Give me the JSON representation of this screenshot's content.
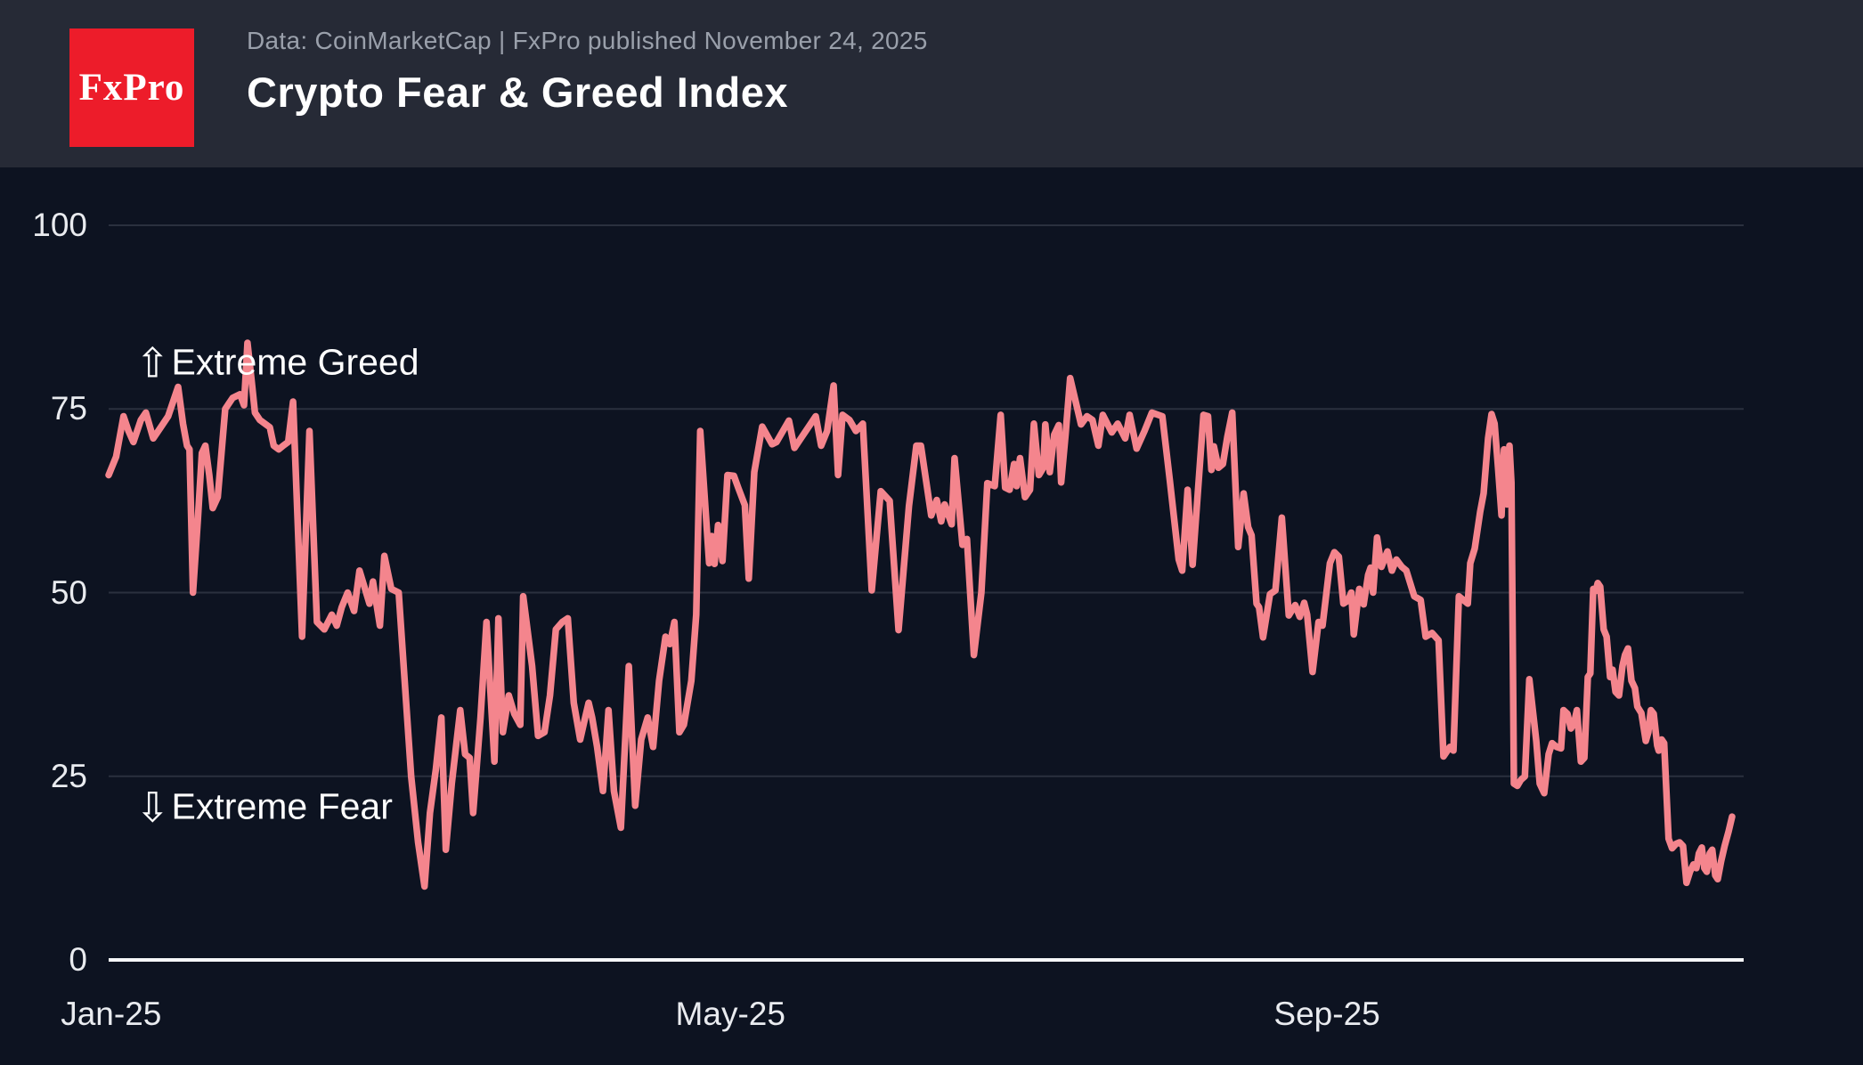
{
  "header": {
    "logo_text": "FxPro",
    "subtitle": "Data: CoinMarketCap | FxPro published November 24, 2025",
    "title": "Crypto Fear & Greed Index"
  },
  "annotations": {
    "greed": {
      "arrow": "⇧",
      "label": "Extreme Greed"
    },
    "fear": {
      "arrow": "⇩",
      "label": "Extreme Fear"
    }
  },
  "colors": {
    "page_background": "#0d1321",
    "header_background": "#262a36",
    "logo_red": "#ed1c2a",
    "line": "#f4858d",
    "gridline": "#2a303e",
    "zero_axis": "#f5f6f8",
    "tick_text": "#e9ebef",
    "subtitle_text": "#9aa0ab",
    "title_text": "#ffffff"
  },
  "chart_data": {
    "type": "line",
    "title": "Crypto Fear & Greed Index",
    "series_name": "Fear & Greed Index",
    "x_unit": "days since Jan 1 2025",
    "x_domain": [
      0,
      327.4
    ],
    "ylim": [
      0,
      100
    ],
    "grid": "horizontal-only",
    "legend": "none",
    "y_ticks": [
      {
        "v": 100,
        "label": "100"
      },
      {
        "v": 75,
        "label": "75"
      },
      {
        "v": 50,
        "label": "50"
      },
      {
        "v": 25,
        "label": "25"
      },
      {
        "v": 0,
        "label": "0"
      }
    ],
    "x_ticks": [
      {
        "d": 0.5,
        "label": "Jan-25"
      },
      {
        "d": 125.4,
        "label": "May-25"
      },
      {
        "d": 245.7,
        "label": "Sep-25"
      }
    ],
    "points": [
      [
        0,
        66
      ],
      [
        1.5,
        68.5
      ],
      [
        3,
        74
      ],
      [
        4,
        72
      ],
      [
        5,
        70.5
      ],
      [
        6.5,
        73.5
      ],
      [
        7.5,
        74.5
      ],
      [
        9,
        71
      ],
      [
        10.5,
        72.5
      ],
      [
        12,
        74
      ],
      [
        14,
        78
      ],
      [
        15,
        73
      ],
      [
        15.8,
        70
      ],
      [
        16.3,
        69.5
      ],
      [
        17,
        50
      ],
      [
        18,
        60
      ],
      [
        18.8,
        69
      ],
      [
        19.5,
        70
      ],
      [
        20.3,
        66
      ],
      [
        21,
        61.5
      ],
      [
        22,
        63
      ],
      [
        23.5,
        75
      ],
      [
        25,
        76.5
      ],
      [
        26.5,
        77
      ],
      [
        27.3,
        75.5
      ],
      [
        28,
        84
      ],
      [
        28.8,
        79
      ],
      [
        29.5,
        74.5
      ],
      [
        30.5,
        73.5
      ],
      [
        31.5,
        73
      ],
      [
        32.5,
        72.5
      ],
      [
        33.3,
        70
      ],
      [
        34.3,
        69.5
      ],
      [
        35.2,
        70
      ],
      [
        36.2,
        70.5
      ],
      [
        37.2,
        76
      ],
      [
        39,
        44
      ],
      [
        40.5,
        72
      ],
      [
        42,
        46
      ],
      [
        43.5,
        45
      ],
      [
        45,
        47
      ],
      [
        46,
        45.5
      ],
      [
        47,
        48
      ],
      [
        48.2,
        50
      ],
      [
        49.5,
        47.5
      ],
      [
        50.6,
        53
      ],
      [
        52.6,
        48.5
      ],
      [
        53.3,
        51.5
      ],
      [
        54.7,
        45.5
      ],
      [
        55.6,
        55
      ],
      [
        57,
        50.5
      ],
      [
        58.5,
        50
      ],
      [
        59.7,
        38
      ],
      [
        61,
        25
      ],
      [
        62.4,
        16
      ],
      [
        63.7,
        10
      ],
      [
        64.8,
        20
      ],
      [
        66,
        26
      ],
      [
        67.1,
        33
      ],
      [
        68,
        15
      ],
      [
        69.2,
        24
      ],
      [
        70.9,
        34
      ],
      [
        71.9,
        28
      ],
      [
        72.8,
        27.5
      ],
      [
        73.5,
        20
      ],
      [
        75,
        33
      ],
      [
        76.2,
        46
      ],
      [
        77.8,
        27
      ],
      [
        78.6,
        46.5
      ],
      [
        79.5,
        31
      ],
      [
        80.7,
        36
      ],
      [
        81.8,
        33.5
      ],
      [
        83,
        32
      ],
      [
        83.6,
        49.5
      ],
      [
        85.4,
        40
      ],
      [
        86.6,
        30.5
      ],
      [
        87.9,
        31
      ],
      [
        89,
        36
      ],
      [
        90.2,
        45
      ],
      [
        91.5,
        46
      ],
      [
        92.6,
        46.5
      ],
      [
        93.8,
        35
      ],
      [
        95.1,
        30
      ],
      [
        96.1,
        33
      ],
      [
        96.8,
        35
      ],
      [
        97.5,
        33
      ],
      [
        98.5,
        29
      ],
      [
        99.7,
        23
      ],
      [
        100.8,
        34
      ],
      [
        101.9,
        23
      ],
      [
        103.3,
        18
      ],
      [
        104.9,
        40
      ],
      [
        106.2,
        21
      ],
      [
        107.4,
        30
      ],
      [
        108.7,
        33
      ],
      [
        109.8,
        29
      ],
      [
        111,
        38
      ],
      [
        112.3,
        44
      ],
      [
        113.2,
        43
      ],
      [
        114.1,
        46
      ],
      [
        115.1,
        31
      ],
      [
        116,
        32
      ],
      [
        117.5,
        38
      ],
      [
        118.5,
        47
      ],
      [
        119.3,
        72
      ],
      [
        120.2,
        63
      ],
      [
        121.1,
        54
      ],
      [
        121.6,
        57.7
      ],
      [
        122.2,
        53.9
      ],
      [
        122.9,
        59.2
      ],
      [
        123.8,
        54.3
      ],
      [
        124.8,
        66
      ],
      [
        126.1,
        65.9
      ],
      [
        127,
        64.2
      ],
      [
        128.3,
        61.9
      ],
      [
        129.1,
        51.9
      ],
      [
        130.2,
        66.4
      ],
      [
        131.8,
        72.6
      ],
      [
        133.8,
        70.2
      ],
      [
        134.7,
        70.5
      ],
      [
        137.2,
        73.4
      ],
      [
        138.3,
        69.7
      ],
      [
        139.6,
        71
      ],
      [
        142.6,
        74
      ],
      [
        143.7,
        70
      ],
      [
        144.9,
        72
      ],
      [
        146.2,
        78.2
      ],
      [
        147.1,
        66
      ],
      [
        148,
        74.2
      ],
      [
        149.4,
        73.5
      ],
      [
        150.7,
        72
      ],
      [
        152.1,
        73
      ],
      [
        153.9,
        50.3
      ],
      [
        155.7,
        63.8
      ],
      [
        157.5,
        62.5
      ],
      [
        159.3,
        44.9
      ],
      [
        161.4,
        61.8
      ],
      [
        162.9,
        70
      ],
      [
        163.8,
        70
      ],
      [
        165.9,
        60.5
      ],
      [
        167,
        62.6
      ],
      [
        167.9,
        59.7
      ],
      [
        168.6,
        62
      ],
      [
        170,
        59.3
      ],
      [
        170.6,
        68.3
      ],
      [
        172.2,
        56.5
      ],
      [
        173.1,
        57.3
      ],
      [
        174.5,
        41.5
      ],
      [
        176,
        50
      ],
      [
        177.2,
        64.9
      ],
      [
        178.7,
        64.5
      ],
      [
        179.9,
        74.2
      ],
      [
        180.8,
        64.3
      ],
      [
        181.7,
        64
      ],
      [
        182.6,
        67.5
      ],
      [
        183.1,
        64.5
      ],
      [
        183.8,
        68.3
      ],
      [
        184.8,
        63
      ],
      [
        185.8,
        64
      ],
      [
        186.6,
        73
      ],
      [
        187.6,
        66
      ],
      [
        188.5,
        67
      ],
      [
        188.9,
        72.9
      ],
      [
        189.8,
        66.4
      ],
      [
        190.7,
        71.5
      ],
      [
        191.6,
        72.8
      ],
      [
        192.1,
        65
      ],
      [
        193,
        71.6
      ],
      [
        193.9,
        79.2
      ],
      [
        196.1,
        72.9
      ],
      [
        197.3,
        74
      ],
      [
        198.4,
        73.5
      ],
      [
        199.6,
        70
      ],
      [
        200.5,
        74.2
      ],
      [
        202.3,
        71.8
      ],
      [
        203.5,
        73
      ],
      [
        205,
        71
      ],
      [
        205.9,
        74.2
      ],
      [
        207.3,
        69.6
      ],
      [
        208.9,
        72
      ],
      [
        210.4,
        74.5
      ],
      [
        212.5,
        74
      ],
      [
        214,
        65.3
      ],
      [
        215.8,
        54.5
      ],
      [
        216.5,
        53
      ],
      [
        217.6,
        64
      ],
      [
        218.6,
        53.8
      ],
      [
        220.8,
        74.2
      ],
      [
        221.7,
        74
      ],
      [
        222.4,
        66.7
      ],
      [
        222.9,
        69.9
      ],
      [
        223.8,
        67
      ],
      [
        224.7,
        67.5
      ],
      [
        225.6,
        71.2
      ],
      [
        226.6,
        74.5
      ],
      [
        227.8,
        56.2
      ],
      [
        228.9,
        63.5
      ],
      [
        229.8,
        58.9
      ],
      [
        230.5,
        57.8
      ],
      [
        231.5,
        48.5
      ],
      [
        232,
        48
      ],
      [
        232.8,
        43.9
      ],
      [
        234.2,
        49.8
      ],
      [
        235.3,
        50.3
      ],
      [
        236.6,
        60.2
      ],
      [
        238,
        46.9
      ],
      [
        239.3,
        48.3
      ],
      [
        240.2,
        46.7
      ],
      [
        241.1,
        48.6
      ],
      [
        241.7,
        47
      ],
      [
        242.8,
        39.2
      ],
      [
        244,
        46
      ],
      [
        244.8,
        45.5
      ],
      [
        246.3,
        54
      ],
      [
        247.2,
        55.5
      ],
      [
        248.1,
        54.9
      ],
      [
        249,
        48.5
      ],
      [
        249.9,
        48.9
      ],
      [
        250.6,
        50
      ],
      [
        251.1,
        44.3
      ],
      [
        252.2,
        50.5
      ],
      [
        253.1,
        48.4
      ],
      [
        254,
        52.4
      ],
      [
        254.5,
        53.4
      ],
      [
        255,
        50
      ],
      [
        255.8,
        57.5
      ],
      [
        256.7,
        53.5
      ],
      [
        257.6,
        55.1
      ],
      [
        257.9,
        55.6
      ],
      [
        258.8,
        53
      ],
      [
        259.7,
        54.5
      ],
      [
        260.8,
        53.5
      ],
      [
        261.7,
        53
      ],
      [
        263.3,
        49.5
      ],
      [
        264.6,
        49
      ],
      [
        265.6,
        44
      ],
      [
        266.9,
        44.5
      ],
      [
        268.2,
        43.5
      ],
      [
        269.2,
        27.7
      ],
      [
        270.5,
        29
      ],
      [
        271.2,
        28.5
      ],
      [
        272.3,
        49.5
      ],
      [
        273.2,
        49
      ],
      [
        274.1,
        48.5
      ],
      [
        274.6,
        54
      ],
      [
        275.5,
        56
      ],
      [
        276.6,
        61
      ],
      [
        277.3,
        63.5
      ],
      [
        278.2,
        71
      ],
      [
        278.9,
        74.3
      ],
      [
        279.5,
        73
      ],
      [
        280.2,
        67
      ],
      [
        280.9,
        60.5
      ],
      [
        281.4,
        69.5
      ],
      [
        282,
        62
      ],
      [
        282.5,
        70
      ],
      [
        282.9,
        65
      ],
      [
        283.4,
        24
      ],
      [
        284.1,
        23.7
      ],
      [
        284.8,
        24.5
      ],
      [
        285.6,
        25
      ],
      [
        286.5,
        38.2
      ],
      [
        287.2,
        34
      ],
      [
        287.9,
        29.8
      ],
      [
        288.6,
        24
      ],
      [
        289.5,
        22.7
      ],
      [
        290.4,
        28
      ],
      [
        291.1,
        29.5
      ],
      [
        292,
        29
      ],
      [
        292.9,
        28.8
      ],
      [
        293.4,
        34
      ],
      [
        294.2,
        33.5
      ],
      [
        294.9,
        31.5
      ],
      [
        295.6,
        32.4
      ],
      [
        296.1,
        34
      ],
      [
        296.9,
        27
      ],
      [
        297.6,
        27.5
      ],
      [
        298.3,
        38.5
      ],
      [
        298.8,
        39
      ],
      [
        299.4,
        50.5
      ],
      [
        299.9,
        50.2
      ],
      [
        300.3,
        51.3
      ],
      [
        300.8,
        50.8
      ],
      [
        301.5,
        45
      ],
      [
        302.1,
        44
      ],
      [
        302.8,
        38.5
      ],
      [
        303.3,
        39.5
      ],
      [
        303.9,
        36.5
      ],
      [
        304.6,
        36
      ],
      [
        305.3,
        40
      ],
      [
        305.8,
        41.5
      ],
      [
        306.4,
        42.4
      ],
      [
        307.1,
        38
      ],
      [
        307.8,
        37
      ],
      [
        308.3,
        34.5
      ],
      [
        309.1,
        33.6
      ],
      [
        310,
        29.8
      ],
      [
        310.5,
        31
      ],
      [
        311,
        34
      ],
      [
        311.6,
        33.5
      ],
      [
        312.3,
        29.2
      ],
      [
        312.6,
        28.5
      ],
      [
        313.2,
        30
      ],
      [
        313.7,
        29.5
      ],
      [
        314.6,
        16.5
      ],
      [
        315.3,
        15.2
      ],
      [
        316.1,
        15.8
      ],
      [
        316.8,
        16
      ],
      [
        317.5,
        15.5
      ],
      [
        318.2,
        10.5
      ],
      [
        318.9,
        12
      ],
      [
        319.6,
        13
      ],
      [
        320.2,
        12.5
      ],
      [
        320.7,
        14.5
      ],
      [
        321.3,
        15.3
      ],
      [
        321.8,
        12.5
      ],
      [
        322.3,
        12
      ],
      [
        322.9,
        14.5
      ],
      [
        323.4,
        15
      ],
      [
        324,
        11.5
      ],
      [
        324.5,
        11
      ],
      [
        325.2,
        13.5
      ],
      [
        325.9,
        15.5
      ],
      [
        326.7,
        17.5
      ],
      [
        327.4,
        19.5
      ]
    ]
  }
}
